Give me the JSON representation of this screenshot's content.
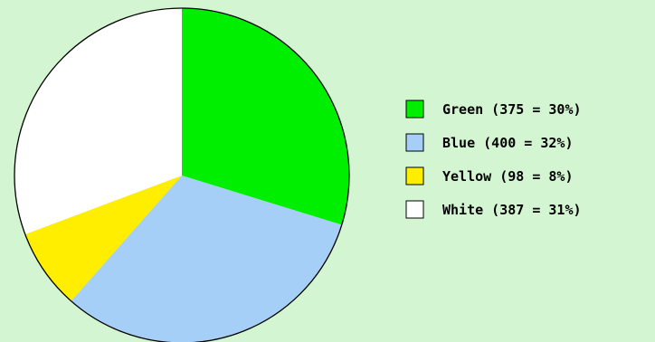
{
  "chart_data": {
    "type": "pie",
    "slices": [
      {
        "label": "Green",
        "value": 375,
        "percent": "30%",
        "color": "#00ee00",
        "legend_text": "Green (375 = 30%)"
      },
      {
        "label": "Blue",
        "value": 400,
        "percent": "32%",
        "color": "#a5cff7",
        "legend_text": "Blue (400 = 32%)"
      },
      {
        "label": "Yellow",
        "value": 98,
        "percent": "8%",
        "color": "#ffee00",
        "legend_text": "Yellow (98 = 8%)"
      },
      {
        "label": "White",
        "value": 387,
        "percent": "31%",
        "color": "#ffffff",
        "legend_text": "White (387 = 31%)"
      }
    ],
    "start_angle": "12 o'clock",
    "direction": "clockwise",
    "legend_position": "right"
  },
  "colors": {
    "background": "#d3f5d1",
    "outline": "#000000"
  }
}
